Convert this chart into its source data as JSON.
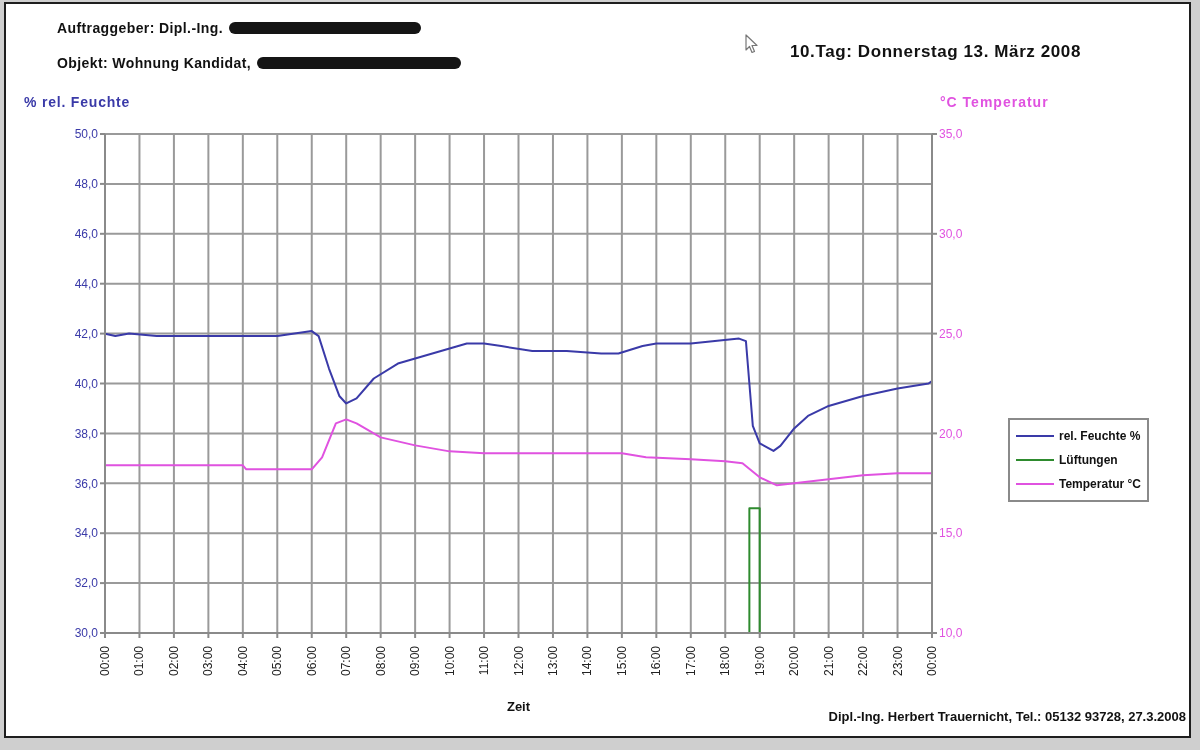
{
  "chart_data": {
    "type": "line",
    "title": "10.Tag: Donnerstag 13. März 2008",
    "xlabel": "Zeit",
    "ylabel": "% rel. Feuchte",
    "y2label": "°C Temperatur",
    "annotations": [
      "Auftraggeber: Dipl.-Ing.",
      "Objekt: Wohnung Kandidat,",
      "Dipl.-Ing. Herbert Trauernicht, Tel.: 05132 93728, 27.3.2008"
    ],
    "xlim": [
      0,
      24
    ],
    "xticks": [
      {
        "value": 0,
        "label": "00:00"
      },
      {
        "value": 1,
        "label": "01:00"
      },
      {
        "value": 2,
        "label": "02:00"
      },
      {
        "value": 3,
        "label": "03:00"
      },
      {
        "value": 4,
        "label": "04:00"
      },
      {
        "value": 5,
        "label": "05:00"
      },
      {
        "value": 6,
        "label": "06:00"
      },
      {
        "value": 7,
        "label": "07:00"
      },
      {
        "value": 8,
        "label": "08:00"
      },
      {
        "value": 9,
        "label": "09:00"
      },
      {
        "value": 10,
        "label": "10:00"
      },
      {
        "value": 11,
        "label": "11:00"
      },
      {
        "value": 12,
        "label": "12:00"
      },
      {
        "value": 13,
        "label": "13:00"
      },
      {
        "value": 14,
        "label": "14:00"
      },
      {
        "value": 15,
        "label": "15:00"
      },
      {
        "value": 16,
        "label": "16:00"
      },
      {
        "value": 17,
        "label": "17:00"
      },
      {
        "value": 18,
        "label": "18:00"
      },
      {
        "value": 19,
        "label": "19:00"
      },
      {
        "value": 20,
        "label": "20:00"
      },
      {
        "value": 21,
        "label": "21:00"
      },
      {
        "value": 22,
        "label": "22:00"
      },
      {
        "value": 23,
        "label": "23:00"
      },
      {
        "value": 24,
        "label": "00:00"
      }
    ],
    "ylim": [
      30,
      50
    ],
    "yticks": [
      {
        "value": 30,
        "label": "30,0"
      },
      {
        "value": 32,
        "label": "32,0"
      },
      {
        "value": 34,
        "label": "34,0"
      },
      {
        "value": 36,
        "label": "36,0"
      },
      {
        "value": 38,
        "label": "38,0"
      },
      {
        "value": 40,
        "label": "40,0"
      },
      {
        "value": 42,
        "label": "42,0"
      },
      {
        "value": 44,
        "label": "44,0"
      },
      {
        "value": 46,
        "label": "46,0"
      },
      {
        "value": 48,
        "label": "48,0"
      },
      {
        "value": 50,
        "label": "50,0"
      }
    ],
    "y2lim": [
      10,
      35
    ],
    "y2ticks": [
      {
        "value": 10,
        "label": "10,0"
      },
      {
        "value": 15,
        "label": "15,0"
      },
      {
        "value": 20,
        "label": "20,0"
      },
      {
        "value": 25,
        "label": "25,0"
      },
      {
        "value": 30,
        "label": "30,0"
      },
      {
        "value": 35,
        "label": "35,0"
      }
    ],
    "grid": true,
    "legend": "right",
    "marker": "none",
    "series": [
      {
        "name": "rel. Feuchte %",
        "color": "#3a3aa8",
        "x": [
          0,
          0.3,
          0.7,
          1.5,
          3,
          5,
          5.5,
          6.0,
          6.2,
          6.5,
          6.8,
          7.0,
          7.3,
          7.8,
          8.5,
          9.0,
          10.0,
          10.5,
          11.0,
          11.5,
          12.4,
          13.4,
          14.4,
          14.9,
          15.6,
          16.0,
          17.0,
          17.7,
          18.4,
          18.6,
          18.7,
          18.8,
          19.0,
          19.4,
          19.6,
          20.0,
          20.4,
          21.0,
          22.0,
          23.0,
          23.9,
          24.0
        ],
        "values": [
          42.0,
          41.9,
          42.0,
          41.9,
          41.9,
          41.9,
          42.0,
          42.1,
          41.9,
          40.6,
          39.5,
          39.2,
          39.4,
          40.2,
          40.8,
          41.0,
          41.4,
          41.6,
          41.6,
          41.5,
          41.3,
          41.3,
          41.2,
          41.2,
          41.5,
          41.6,
          41.6,
          41.7,
          41.8,
          41.7,
          40.0,
          38.3,
          37.6,
          37.3,
          37.5,
          38.2,
          38.7,
          39.1,
          39.5,
          39.8,
          40.0,
          40.1
        ]
      },
      {
        "name": "Lüftungen",
        "color": "#2e8b2e",
        "x": [
          18.7,
          18.7,
          19.0,
          19.0
        ],
        "values": [
          30,
          35,
          35,
          30
        ]
      },
      {
        "name": "Temperatur °C",
        "color": "#e052e0",
        "axis": "y2",
        "x": [
          0,
          4.0,
          4.1,
          6.0,
          6.3,
          6.7,
          7.0,
          7.3,
          8.0,
          9.0,
          10.0,
          11.0,
          12.0,
          13.0,
          15.0,
          15.7,
          17.0,
          18.0,
          18.5,
          19.0,
          19.5,
          20.0,
          21.0,
          22.0,
          23.0,
          24.0
        ],
        "values": [
          18.4,
          18.4,
          18.2,
          18.2,
          18.8,
          20.5,
          20.7,
          20.5,
          19.8,
          19.4,
          19.1,
          19.0,
          19.0,
          19.0,
          19.0,
          18.8,
          18.7,
          18.6,
          18.5,
          17.8,
          17.4,
          17.5,
          17.7,
          17.9,
          18.0,
          18.0
        ]
      }
    ]
  }
}
